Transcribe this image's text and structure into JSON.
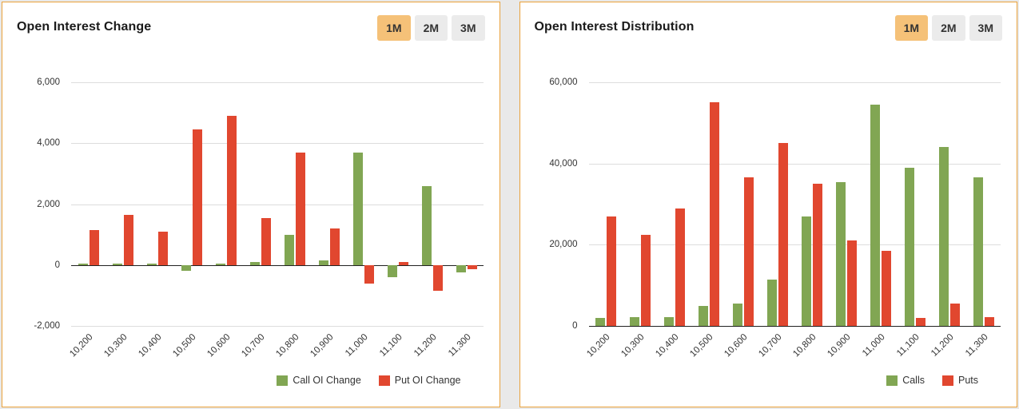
{
  "style": {
    "panel_border_color": "#e9a13b",
    "active_range_bg": "#f5c178",
    "inactive_range_bg": "#ebebeb",
    "call_color": "#81a653",
    "put_color": "#e1472f"
  },
  "panels": [
    {
      "title": "Open Interest Change",
      "ranges": [
        "1M",
        "2M",
        "3M"
      ],
      "active_range": "1M"
    },
    {
      "title": "Open Interest Distribution",
      "ranges": [
        "1M",
        "2M",
        "3M"
      ],
      "active_range": "1M"
    }
  ],
  "chart_data": [
    {
      "type": "bar",
      "title": "Open Interest Change",
      "categories": [
        "10,200",
        "10,300",
        "10,400",
        "10,500",
        "10,600",
        "10,700",
        "10,800",
        "10,900",
        "11,000",
        "11,100",
        "11,200",
        "11,300"
      ],
      "series": [
        {
          "name": "Call OI Change",
          "color": "#81a653",
          "values": [
            50,
            50,
            50,
            -200,
            50,
            100,
            1000,
            150,
            3700,
            -400,
            2600,
            -250
          ]
        },
        {
          "name": "Put OI Change",
          "color": "#e1472f",
          "values": [
            1150,
            1650,
            1100,
            4450,
            4900,
            1550,
            3700,
            1200,
            -600,
            100,
            -850,
            -150
          ]
        }
      ],
      "xlabel": "",
      "ylabel": "",
      "ylim": [
        -2000,
        6000
      ],
      "yticks": [
        -2000,
        0,
        2000,
        4000,
        6000
      ],
      "grid": true,
      "legend_position": "bottom-right"
    },
    {
      "type": "bar",
      "title": "Open Interest Distribution",
      "categories": [
        "10,200",
        "10,300",
        "10,400",
        "10,500",
        "10,600",
        "10,700",
        "10,800",
        "10,900",
        "11,000",
        "11,100",
        "11,200",
        "11,300"
      ],
      "series": [
        {
          "name": "Calls",
          "color": "#81a653",
          "values": [
            2000,
            2200,
            2200,
            5000,
            5500,
            11500,
            27000,
            35500,
            54500,
            39000,
            44000,
            36500
          ]
        },
        {
          "name": "Puts",
          "color": "#e1472f",
          "values": [
            27000,
            22500,
            29000,
            55000,
            36500,
            45000,
            35000,
            21000,
            18500,
            2000,
            5500,
            2200
          ]
        }
      ],
      "xlabel": "",
      "ylabel": "",
      "ylim": [
        0,
        60000
      ],
      "yticks": [
        0,
        20000,
        40000,
        60000
      ],
      "grid": true,
      "legend_position": "bottom-right"
    }
  ]
}
